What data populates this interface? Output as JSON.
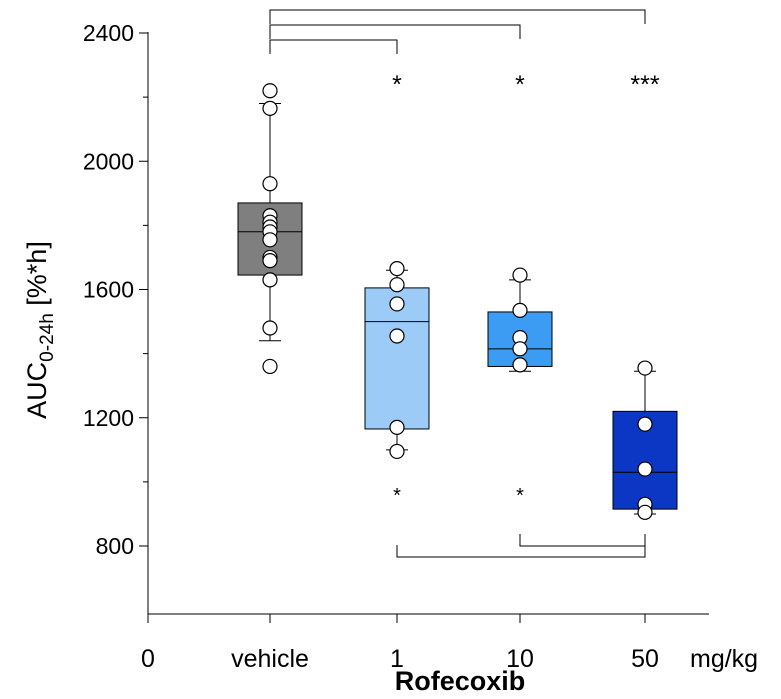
{
  "chart_data": {
    "type": "box",
    "title": "",
    "xlabel": "Rofecoxib",
    "ylabel_main": "AUC",
    "ylabel_sub": "0-24h",
    "ylabel_unit": " [%*h]",
    "ylim": [
      670,
      2400
    ],
    "yticks": [
      800,
      1200,
      1600,
      2000,
      2400
    ],
    "x_zero_label": "0",
    "x_unit_label": "mg/kg",
    "groups": [
      {
        "label": "vehicle",
        "color": "#7f7f7f",
        "q1": 1645,
        "median": 1780,
        "q3": 1870,
        "whisker_low": 1440,
        "whisker_high": 2180,
        "points": [
          2220,
          2165,
          1930,
          1830,
          1810,
          1795,
          1780,
          1755,
          1700,
          1690,
          1630,
          1480,
          1360
        ]
      },
      {
        "label": "1",
        "color": "#9ccbf7",
        "q1": 1165,
        "median": 1500,
        "q3": 1605,
        "whisker_low": 1100,
        "whisker_high": 1660,
        "points": [
          1665,
          1615,
          1555,
          1455,
          1170,
          1095
        ]
      },
      {
        "label": "10",
        "color": "#3c9bf2",
        "q1": 1360,
        "median": 1415,
        "q3": 1530,
        "whisker_low": 1345,
        "whisker_high": 1630,
        "points": [
          1645,
          1535,
          1450,
          1415,
          1365
        ]
      },
      {
        "label": "50",
        "color": "#0c37c4",
        "q1": 915,
        "median": 1030,
        "q3": 1220,
        "whisker_low": 900,
        "whisker_high": 1345,
        "points": [
          1355,
          1180,
          1040,
          930,
          905
        ]
      }
    ],
    "top_brackets": [
      {
        "from": "vehicle",
        "to": "1",
        "label": "*"
      },
      {
        "from": "vehicle",
        "to": "10",
        "label": "*"
      },
      {
        "from": "vehicle",
        "to": "50",
        "label": "***"
      }
    ],
    "bottom_brackets": [
      {
        "from": "1",
        "to": "50",
        "label": "*"
      },
      {
        "from": "10",
        "to": "50",
        "label": "*"
      }
    ]
  }
}
